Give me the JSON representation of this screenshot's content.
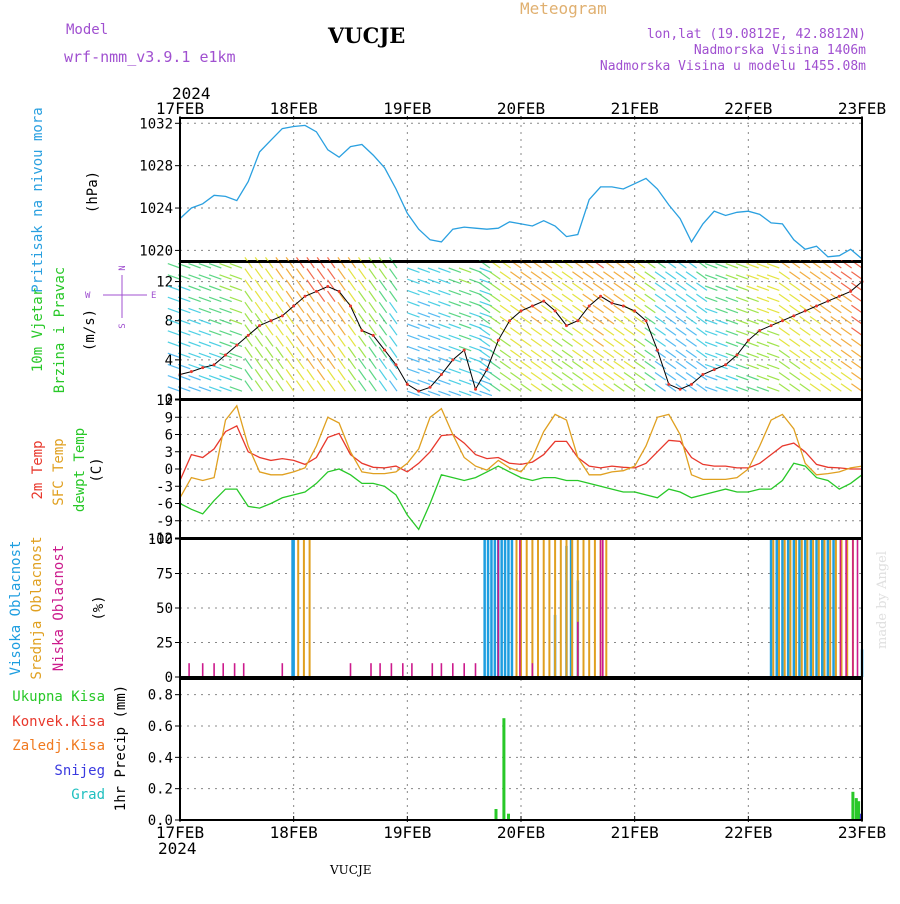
{
  "header": {
    "model_label": "Model",
    "model_name": "wrf-nmm_v3.9.1  e1km",
    "station": "VUCJE",
    "product": "Meteogram",
    "coords": "lon,lat (19.0812E, 42.8812N)",
    "elevation": "Nadmorska Visina 1406m",
    "model_elevation": "Nadmorska Visina u modelu 1455.08m",
    "footer_station": "VUCJE",
    "credit": "made by Angel"
  },
  "colors": {
    "pressure": "#2aa0e0",
    "temp2m": "#e8382c",
    "sfc_temp": "#e0a020",
    "dewpt": "#28c828",
    "high_cloud": "#1e9ee0",
    "mid_cloud": "#e0a020",
    "low_cloud": "#cc1a8c",
    "total_precip": "#28c828",
    "conv_precip": "#e8382c",
    "frozen_precip": "#f07a20",
    "snow": "#3a3ae0",
    "hail": "#20c0c0",
    "meta_text": "#a050d0",
    "product_text": "#e0b070"
  },
  "x_axis": {
    "year": "2024",
    "ticks": [
      "17FEB",
      "18FEB",
      "19FEB",
      "20FEB",
      "21FEB",
      "22FEB",
      "23FEB"
    ]
  },
  "chart_data": [
    {
      "type": "line",
      "panel": "pressure",
      "ylabel_main": "Pritisak na nivou mora",
      "ylabel_unit": "(hPa)",
      "ylim": [
        1019,
        1032.5
      ],
      "yticks": [
        1020,
        1024,
        1028,
        1032
      ],
      "x_days": [
        0,
        0.1,
        0.2,
        0.3,
        0.4,
        0.5,
        0.6,
        0.7,
        0.8,
        0.9,
        1.0,
        1.1,
        1.2,
        1.3,
        1.4,
        1.5,
        1.6,
        1.7,
        1.8,
        1.9,
        2.0,
        2.1,
        2.2,
        2.3,
        2.4,
        2.5,
        2.6,
        2.7,
        2.8,
        2.9,
        3.0,
        3.1,
        3.2,
        3.3,
        3.4,
        3.5,
        3.6,
        3.7,
        3.8,
        3.9,
        4.0,
        4.1,
        4.2,
        4.3,
        4.4,
        4.5,
        4.6,
        4.7,
        4.8,
        4.9,
        5.0,
        5.1,
        5.2,
        5.3,
        5.4,
        5.5,
        5.6,
        5.7,
        5.8,
        5.9,
        6.0
      ],
      "values": [
        1023,
        1024,
        1024.4,
        1025.2,
        1025.1,
        1024.7,
        1026.5,
        1029.3,
        1030.4,
        1031.5,
        1031.7,
        1031.8,
        1031.2,
        1029.5,
        1028.8,
        1029.8,
        1030,
        1029,
        1027.8,
        1025.8,
        1023.5,
        1022,
        1021,
        1020.8,
        1022,
        1022.2,
        1022.1,
        1022,
        1022.1,
        1022.7,
        1022.5,
        1022.3,
        1022.8,
        1022.3,
        1021.3,
        1021.5,
        1024.8,
        1026,
        1026,
        1025.8,
        1026.3,
        1026.8,
        1025.8,
        1024.3,
        1023,
        1020.8,
        1022.5,
        1023.7,
        1023.3,
        1023.6,
        1023.7,
        1023.4,
        1022.6,
        1022.5,
        1021,
        1020.1,
        1020.4,
        1019.4,
        1019.5,
        1020.1,
        1019.2
      ]
    },
    {
      "type": "line",
      "panel": "wind",
      "ylabel_main": "10m Vjetar",
      "ylabel_sub": "Brzina i Pravac",
      "ylabel_unit": "(m/s)",
      "compass": "N",
      "compass_left": "W",
      "compass_right": "E",
      "compass_bottom": "S",
      "ylim": [
        0,
        14
      ],
      "yticks": [
        0,
        4,
        8,
        12
      ],
      "x_days": [
        0,
        0.1,
        0.2,
        0.3,
        0.4,
        0.5,
        0.6,
        0.7,
        0.8,
        0.9,
        1.0,
        1.1,
        1.2,
        1.3,
        1.4,
        1.5,
        1.6,
        1.7,
        1.8,
        1.9,
        2.0,
        2.1,
        2.2,
        2.3,
        2.4,
        2.5,
        2.6,
        2.7,
        2.8,
        2.9,
        3.0,
        3.1,
        3.2,
        3.3,
        3.4,
        3.5,
        3.6,
        3.7,
        3.8,
        3.9,
        4.0,
        4.1,
        4.2,
        4.3,
        4.4,
        4.5,
        4.6,
        4.7,
        4.8,
        4.9,
        5.0,
        5.1,
        5.2,
        5.3,
        5.4,
        5.5,
        5.6,
        5.7,
        5.8,
        5.9,
        6.0
      ],
      "values": [
        2.5,
        2.8,
        3.2,
        3.5,
        4.5,
        5.5,
        6.5,
        7.5,
        8,
        8.5,
        9.5,
        10.5,
        11,
        11.5,
        11,
        9.5,
        7,
        6.5,
        5,
        3.5,
        1.5,
        0.8,
        1.2,
        2.5,
        4,
        5,
        1,
        3,
        6,
        8,
        9,
        9.5,
        10,
        9,
        7.5,
        8,
        9.5,
        10.5,
        9.8,
        9.5,
        9,
        8,
        5,
        1.5,
        1,
        1.5,
        2.5,
        3,
        3.5,
        4.5,
        6,
        7,
        7.5,
        8,
        8.5,
        9,
        9.5,
        10,
        10.5,
        11,
        12
      ]
    },
    {
      "type": "line",
      "panel": "temperature",
      "ylabel_temp": "2m Temp",
      "ylabel_sfc": "SFC Temp",
      "ylabel_dew": "dewpt Temp",
      "ylabel_unit": "(C)",
      "ylim": [
        -12,
        12
      ],
      "yticks": [
        -12,
        -9,
        -6,
        -3,
        0,
        3,
        6,
        9,
        12
      ],
      "x_days": [
        0,
        0.1,
        0.2,
        0.3,
        0.4,
        0.5,
        0.6,
        0.7,
        0.8,
        0.9,
        1.0,
        1.1,
        1.2,
        1.3,
        1.4,
        1.5,
        1.6,
        1.7,
        1.8,
        1.9,
        2.0,
        2.1,
        2.2,
        2.3,
        2.4,
        2.5,
        2.6,
        2.7,
        2.8,
        2.9,
        3.0,
        3.1,
        3.2,
        3.3,
        3.4,
        3.5,
        3.6,
        3.7,
        3.8,
        3.9,
        4.0,
        4.1,
        4.2,
        4.3,
        4.4,
        4.5,
        4.6,
        4.7,
        4.8,
        4.9,
        5.0,
        5.1,
        5.2,
        5.3,
        5.4,
        5.5,
        5.6,
        5.7,
        5.8,
        5.9,
        6.0
      ],
      "series": [
        {
          "name": "2m Temp",
          "color_key": "temp2m",
          "values": [
            -2,
            2.5,
            2,
            3.5,
            6.5,
            7.5,
            3,
            2,
            1.5,
            1.8,
            1.5,
            0.8,
            2,
            5.5,
            6.2,
            2.5,
            1,
            0.3,
            0.2,
            0.5,
            -0.5,
            1,
            3,
            5.8,
            6,
            4.5,
            2.5,
            1.8,
            2,
            1,
            0.8,
            1.2,
            2.5,
            4.8,
            4.8,
            2,
            0.5,
            0.2,
            0.5,
            0.3,
            0.2,
            1,
            3,
            5,
            4.8,
            2,
            0.8,
            0.5,
            0.5,
            0.2,
            0.2,
            1,
            2.5,
            4,
            4.5,
            3,
            0.8,
            0.3,
            0.2,
            0,
            0
          ]
        },
        {
          "name": "SFC Temp",
          "color_key": "sfc_temp",
          "values": [
            -5,
            -1.5,
            -2,
            -1.5,
            8.5,
            11,
            4,
            -0.5,
            -1,
            -1,
            -0.5,
            0.2,
            4,
            9,
            8,
            3,
            -0.5,
            -0.8,
            -0.8,
            -0.5,
            1,
            3.5,
            9,
            10.5,
            6,
            2,
            0.5,
            -0.2,
            1.5,
            0.2,
            -0.5,
            2,
            6.5,
            9.5,
            8.5,
            2,
            -1,
            -1,
            -0.5,
            -0.3,
            0.5,
            4,
            9,
            9.5,
            6,
            -1,
            -1.8,
            -1.8,
            -1.8,
            -1.5,
            0,
            4,
            8.5,
            9.5,
            7,
            1,
            -1,
            -0.8,
            -0.5,
            0.2,
            0.5
          ]
        },
        {
          "name": "dewpt Temp",
          "color_key": "dewpt",
          "values": [
            -6,
            -7,
            -7.8,
            -5.5,
            -3.5,
            -3.5,
            -6.5,
            -6.8,
            -6,
            -5,
            -4.5,
            -4,
            -2.5,
            -0.5,
            0,
            -1,
            -2.5,
            -2.5,
            -3,
            -4.5,
            -8,
            -10.5,
            -6,
            -1,
            -1.5,
            -2,
            -1.5,
            -0.5,
            0.5,
            -0.5,
            -1.5,
            -2,
            -1.5,
            -1.5,
            -2,
            -2,
            -2.5,
            -3,
            -3.5,
            -4,
            -4,
            -4.5,
            -5,
            -3.5,
            -4,
            -5,
            -4.5,
            -4,
            -3.5,
            -4,
            -4,
            -3.5,
            -3.5,
            -2,
            1,
            0.5,
            -1.5,
            -2,
            -3.5,
            -2.5,
            -1
          ]
        }
      ]
    },
    {
      "type": "bar",
      "panel": "cloud",
      "ylabel_high": "Visoka Oblacnost",
      "ylabel_mid": "Srednja Oblacnost",
      "ylabel_low": "Niska Oblacnost",
      "ylabel_unit": "(%)",
      "ylim": [
        0,
        100
      ],
      "yticks": [
        0,
        25,
        50,
        75,
        100
      ],
      "high_cloud": {
        "x_days": [
          0.99,
          1.0,
          2.68,
          2.71,
          2.74,
          2.77,
          2.8,
          2.83,
          2.86,
          2.89,
          2.92,
          3.3,
          3.4,
          3.44,
          3.5,
          5.2,
          5.25,
          5.3,
          5.35,
          5.4,
          5.45,
          5.5,
          5.55,
          5.6,
          5.65,
          5.7,
          5.75,
          6.0
        ],
        "values": [
          100,
          100,
          100,
          100,
          100,
          100,
          100,
          100,
          100,
          100,
          100,
          45,
          95,
          100,
          70,
          100,
          100,
          100,
          100,
          100,
          100,
          100,
          100,
          100,
          100,
          100,
          100,
          20
        ]
      },
      "mid_cloud": {
        "x_days": [
          1.04,
          1.09,
          1.14,
          2.96,
          3.0,
          3.05,
          3.1,
          3.15,
          3.2,
          3.25,
          3.3,
          3.35,
          3.4,
          3.45,
          3.5,
          3.55,
          3.6,
          3.65,
          3.7,
          3.75,
          5.22,
          5.27,
          5.32,
          5.37,
          5.42,
          5.47,
          5.52,
          5.57,
          5.62,
          5.67,
          5.72,
          5.77,
          5.82,
          5.87,
          5.92
        ],
        "values": [
          100,
          100,
          100,
          100,
          100,
          100,
          100,
          100,
          100,
          100,
          100,
          100,
          100,
          100,
          100,
          100,
          100,
          100,
          100,
          100,
          100,
          100,
          100,
          100,
          100,
          100,
          100,
          100,
          100,
          100,
          100,
          100,
          100,
          100,
          100
        ]
      },
      "low_cloud": {
        "x_days": [
          0.08,
          0.2,
          0.3,
          0.38,
          0.48,
          0.56,
          0.9,
          1.5,
          1.68,
          1.76,
          1.86,
          1.96,
          2.04,
          2.22,
          2.3,
          2.4,
          2.5,
          2.6,
          2.8,
          2.99,
          3.1,
          3.5,
          3.7,
          3.72,
          5.81,
          5.86,
          5.92,
          5.96
        ],
        "values": [
          10,
          10,
          10,
          10,
          10,
          10,
          10,
          10,
          10,
          10,
          10,
          10,
          10,
          10,
          10,
          10,
          10,
          10,
          100,
          100,
          10,
          40,
          100,
          100,
          100,
          100,
          100,
          100
        ]
      }
    },
    {
      "type": "bar",
      "panel": "precip",
      "ylabel_total": "Ukupna Kisa",
      "ylabel_conv": "Konvek.Kisa",
      "ylabel_frozen": "Zaledj.Kisa",
      "ylabel_snow": "Snijeg",
      "ylabel_hail": "Grad",
      "ylabel_unit": "1hr Precip (mm)",
      "ylim": [
        0,
        0.9
      ],
      "yticks": [
        0,
        0.2,
        0.4,
        0.6,
        0.8
      ],
      "total": {
        "x_days": [
          2.78,
          2.85,
          2.89,
          5.92,
          5.95,
          5.97
        ],
        "values": [
          0.07,
          0.65,
          0.04,
          0.18,
          0.14,
          0.12
        ]
      },
      "snow": {
        "x_days": [
          5.99
        ],
        "values": [
          0.04
        ]
      }
    }
  ]
}
